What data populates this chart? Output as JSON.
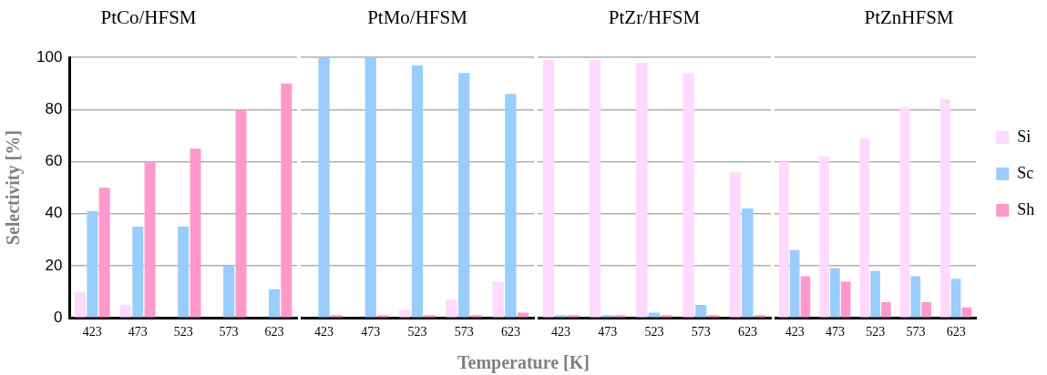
{
  "chart_data": [
    {
      "type": "bar",
      "title": "PtCo/HFSM",
      "ylabel": "Selectivity [%]",
      "categories": [
        "423",
        "473",
        "523",
        "573",
        "623"
      ],
      "series": [
        {
          "color": "#ffd9ff",
          "values": [
            10,
            5,
            0,
            0,
            0
          ]
        },
        {
          "color": "#99ccff",
          "values": [
            41,
            35,
            35,
            20,
            11
          ]
        },
        {
          "color": "#ff99cc",
          "values": [
            50,
            60,
            65,
            80,
            90
          ]
        }
      ],
      "ylim": [
        0,
        100
      ],
      "yticks": [
        0,
        20,
        40,
        60,
        80,
        100
      ],
      "grid": "y",
      "legend": false
    },
    {
      "type": "bar",
      "title": "PtMo/HFSM",
      "xlabel": "Temperature [K]",
      "categories": [
        "423",
        "473",
        "523",
        "573",
        "623"
      ],
      "series": [
        {
          "color": "#ffd9ff",
          "values": [
            0,
            0,
            3,
            7,
            14
          ]
        },
        {
          "color": "#99ccff",
          "values": [
            100,
            100,
            97,
            94,
            86
          ]
        },
        {
          "color": "#ff99cc",
          "values": [
            1,
            1,
            1,
            1,
            2
          ]
        }
      ],
      "ylim": [
        0,
        100
      ],
      "yticks": [
        0,
        20,
        40,
        60,
        80,
        100
      ],
      "grid": "y",
      "legend": false,
      "tick_labels": "x"
    },
    {
      "type": "bar",
      "title": "PtZr/HFSM",
      "categories": [
        "423",
        "473",
        "523",
        "573",
        "623"
      ],
      "series": [
        {
          "color": "#ffd9ff",
          "values": [
            99,
            99,
            98,
            94,
            56
          ]
        },
        {
          "color": "#99ccff",
          "values": [
            1,
            1,
            2,
            5,
            42
          ]
        },
        {
          "color": "#ff99cc",
          "values": [
            1,
            1,
            1,
            1,
            1
          ]
        }
      ],
      "ylim": [
        0,
        100
      ],
      "yticks": [
        0,
        20,
        40,
        60,
        80,
        100
      ],
      "grid": "y",
      "legend": false,
      "tick_labels": "x"
    },
    {
      "type": "bar",
      "title": "PtZnHFSM",
      "categories": [
        "423",
        "473",
        "523",
        "573",
        "623"
      ],
      "series": [
        {
          "name": "Si",
          "color": "#ffd9ff",
          "values": [
            60,
            62,
            69,
            81,
            84
          ]
        },
        {
          "name": "Sc",
          "color": "#99ccff",
          "values": [
            26,
            19,
            18,
            16,
            15
          ]
        },
        {
          "name": "Sh",
          "color": "#ff99cc",
          "values": [
            16,
            14,
            6,
            6,
            4
          ]
        }
      ],
      "ylim": [
        0,
        100
      ],
      "yticks": [
        0,
        20,
        40,
        60,
        80,
        100
      ],
      "grid": "y",
      "legend": "right",
      "tick_labels": "x"
    }
  ]
}
